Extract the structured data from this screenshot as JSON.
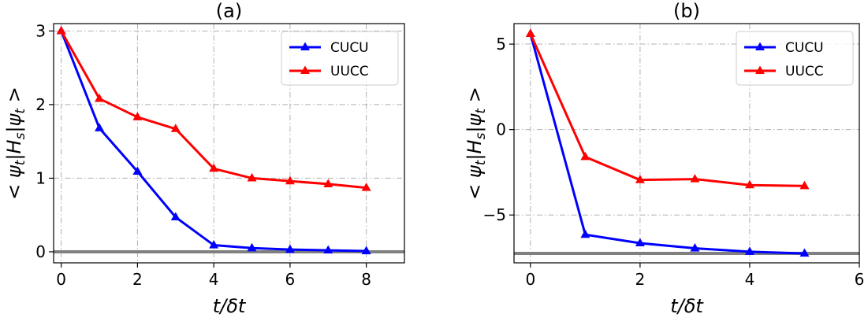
{
  "chart_data": [
    {
      "type": "line",
      "title": "(a)",
      "xlabel": "t/δt",
      "ylabel": "< ψ_t|H_s|ψ_t >",
      "xlim": [
        -0.2,
        9.0
      ],
      "ylim": [
        -0.15,
        3.1
      ],
      "xticks": [
        0,
        2,
        4,
        6,
        8
      ],
      "yticks": [
        0,
        1,
        2,
        3
      ],
      "grid": true,
      "legend": "top-right",
      "series": [
        {
          "name": "CUCU",
          "color": "#0000ff",
          "marker": "triangle-up",
          "x": [
            0,
            1,
            2,
            3,
            4,
            5,
            6,
            7,
            8
          ],
          "values": [
            3.0,
            1.68,
            1.09,
            0.47,
            0.09,
            0.05,
            0.03,
            0.02,
            0.01
          ]
        },
        {
          "name": "UUCC",
          "color": "#ff0000",
          "marker": "triangle-up",
          "x": [
            0,
            1,
            2,
            3,
            4,
            5,
            6,
            7,
            8
          ],
          "values": [
            3.0,
            2.08,
            1.83,
            1.67,
            1.13,
            1.0,
            0.96,
            0.92,
            0.87
          ]
        }
      ],
      "reference_line": {
        "y": 0.0,
        "color": "#808080"
      }
    },
    {
      "type": "line",
      "title": "(b)",
      "xlabel": "t/δt",
      "ylabel": "< ψ_t|H_s|ψ_t >",
      "xlim": [
        -0.3,
        6.0
      ],
      "ylim": [
        -7.8,
        6.2
      ],
      "xticks": [
        0,
        2,
        4,
        6
      ],
      "yticks": [
        -5,
        0,
        5
      ],
      "grid": true,
      "legend": "top-right",
      "series": [
        {
          "name": "CUCU",
          "color": "#0000ff",
          "marker": "triangle-up",
          "x": [
            0,
            1,
            2,
            3,
            4,
            5
          ],
          "values": [
            5.6,
            -6.15,
            -6.65,
            -6.95,
            -7.15,
            -7.25
          ]
        },
        {
          "name": "UUCC",
          "color": "#ff0000",
          "marker": "triangle-up",
          "x": [
            0,
            1,
            2,
            3,
            4,
            5
          ],
          "values": [
            5.6,
            -1.6,
            -2.95,
            -2.9,
            -3.25,
            -3.3
          ]
        }
      ],
      "reference_line": {
        "y": -7.25,
        "color": "#808080"
      }
    }
  ]
}
